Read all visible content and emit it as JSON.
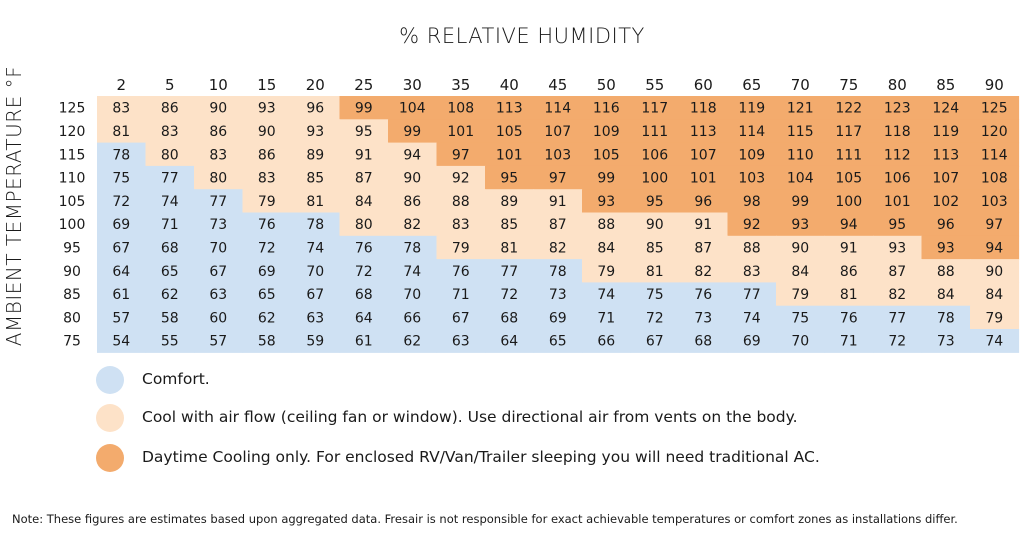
{
  "colors": {
    "comfort": "#cfe1f3",
    "cool_airflow": "#fde2c8",
    "daytime_only": "#f3ab6d",
    "text": "#1a1a1a"
  },
  "chart_data": {
    "type": "heatmap",
    "title": "% RELATIVE HUMIDITY",
    "xlabel": "% RELATIVE HUMIDITY",
    "ylabel": "AMBIENT TEMPERATURE °F",
    "x": [
      2,
      5,
      10,
      15,
      20,
      25,
      30,
      35,
      40,
      45,
      50,
      55,
      60,
      65,
      70,
      75,
      80,
      85,
      90
    ],
    "y": [
      125,
      120,
      115,
      110,
      105,
      100,
      95,
      90,
      85,
      80,
      75
    ],
    "values": [
      [
        83,
        86,
        90,
        93,
        96,
        99,
        104,
        108,
        113,
        114,
        116,
        117,
        118,
        119,
        121,
        122,
        123,
        124,
        125
      ],
      [
        81,
        83,
        86,
        90,
        93,
        95,
        99,
        101,
        105,
        107,
        109,
        111,
        113,
        114,
        115,
        117,
        118,
        119,
        120
      ],
      [
        78,
        80,
        83,
        86,
        89,
        91,
        94,
        97,
        101,
        103,
        105,
        106,
        107,
        109,
        110,
        111,
        112,
        113,
        114
      ],
      [
        75,
        77,
        80,
        83,
        85,
        87,
        90,
        92,
        95,
        97,
        99,
        100,
        101,
        103,
        104,
        105,
        106,
        107,
        108
      ],
      [
        72,
        74,
        77,
        79,
        81,
        84,
        86,
        88,
        89,
        91,
        93,
        95,
        96,
        98,
        99,
        100,
        101,
        102,
        103
      ],
      [
        69,
        71,
        73,
        76,
        78,
        80,
        82,
        83,
        85,
        87,
        88,
        90,
        91,
        92,
        93,
        94,
        95,
        96,
        97
      ],
      [
        67,
        68,
        70,
        72,
        74,
        76,
        78,
        79,
        81,
        82,
        84,
        85,
        87,
        88,
        90,
        91,
        93,
        93,
        94
      ],
      [
        64,
        65,
        67,
        69,
        70,
        72,
        74,
        76,
        77,
        78,
        79,
        81,
        82,
        83,
        84,
        86,
        87,
        88,
        90
      ],
      [
        61,
        62,
        63,
        65,
        67,
        68,
        70,
        71,
        72,
        73,
        74,
        75,
        76,
        77,
        79,
        81,
        82,
        84,
        84
      ],
      [
        57,
        58,
        60,
        62,
        63,
        64,
        66,
        67,
        68,
        69,
        71,
        72,
        73,
        74,
        75,
        76,
        77,
        78,
        79
      ],
      [
        54,
        55,
        57,
        58,
        59,
        61,
        62,
        63,
        64,
        65,
        66,
        67,
        68,
        69,
        70,
        71,
        72,
        73,
        74
      ]
    ],
    "zones": [
      [
        1,
        1,
        1,
        1,
        1,
        2,
        2,
        2,
        2,
        2,
        2,
        2,
        2,
        2,
        2,
        2,
        2,
        2,
        2
      ],
      [
        1,
        1,
        1,
        1,
        1,
        1,
        2,
        2,
        2,
        2,
        2,
        2,
        2,
        2,
        2,
        2,
        2,
        2,
        2
      ],
      [
        0,
        1,
        1,
        1,
        1,
        1,
        1,
        2,
        2,
        2,
        2,
        2,
        2,
        2,
        2,
        2,
        2,
        2,
        2
      ],
      [
        0,
        0,
        1,
        1,
        1,
        1,
        1,
        1,
        2,
        2,
        2,
        2,
        2,
        2,
        2,
        2,
        2,
        2,
        2
      ],
      [
        0,
        0,
        0,
        1,
        1,
        1,
        1,
        1,
        1,
        1,
        2,
        2,
        2,
        2,
        2,
        2,
        2,
        2,
        2
      ],
      [
        0,
        0,
        0,
        0,
        0,
        1,
        1,
        1,
        1,
        1,
        1,
        1,
        1,
        2,
        2,
        2,
        2,
        2,
        2
      ],
      [
        0,
        0,
        0,
        0,
        0,
        0,
        0,
        1,
        1,
        1,
        1,
        1,
        1,
        1,
        1,
        1,
        1,
        2,
        2
      ],
      [
        0,
        0,
        0,
        0,
        0,
        0,
        0,
        0,
        0,
        0,
        1,
        1,
        1,
        1,
        1,
        1,
        1,
        1,
        1
      ],
      [
        0,
        0,
        0,
        0,
        0,
        0,
        0,
        0,
        0,
        0,
        0,
        0,
        0,
        0,
        1,
        1,
        1,
        1,
        1
      ],
      [
        0,
        0,
        0,
        0,
        0,
        0,
        0,
        0,
        0,
        0,
        0,
        0,
        0,
        0,
        0,
        0,
        0,
        0,
        1
      ],
      [
        0,
        0,
        0,
        0,
        0,
        0,
        0,
        0,
        0,
        0,
        0,
        0,
        0,
        0,
        0,
        0,
        0,
        0,
        0
      ]
    ],
    "legend": [
      {
        "zone": 0,
        "label": "Comfort."
      },
      {
        "zone": 1,
        "label": "Cool with air flow (ceiling fan or window). Use directional air from vents on the body."
      },
      {
        "zone": 2,
        "label": "Daytime Cooling only. For enclosed RV/Van/Trailer sleeping you will need traditional AC."
      }
    ]
  },
  "note": "Note: These figures are estimates based upon aggregated data. Fresair is not responsible for exact achievable temperatures or comfort zones as installations differ."
}
